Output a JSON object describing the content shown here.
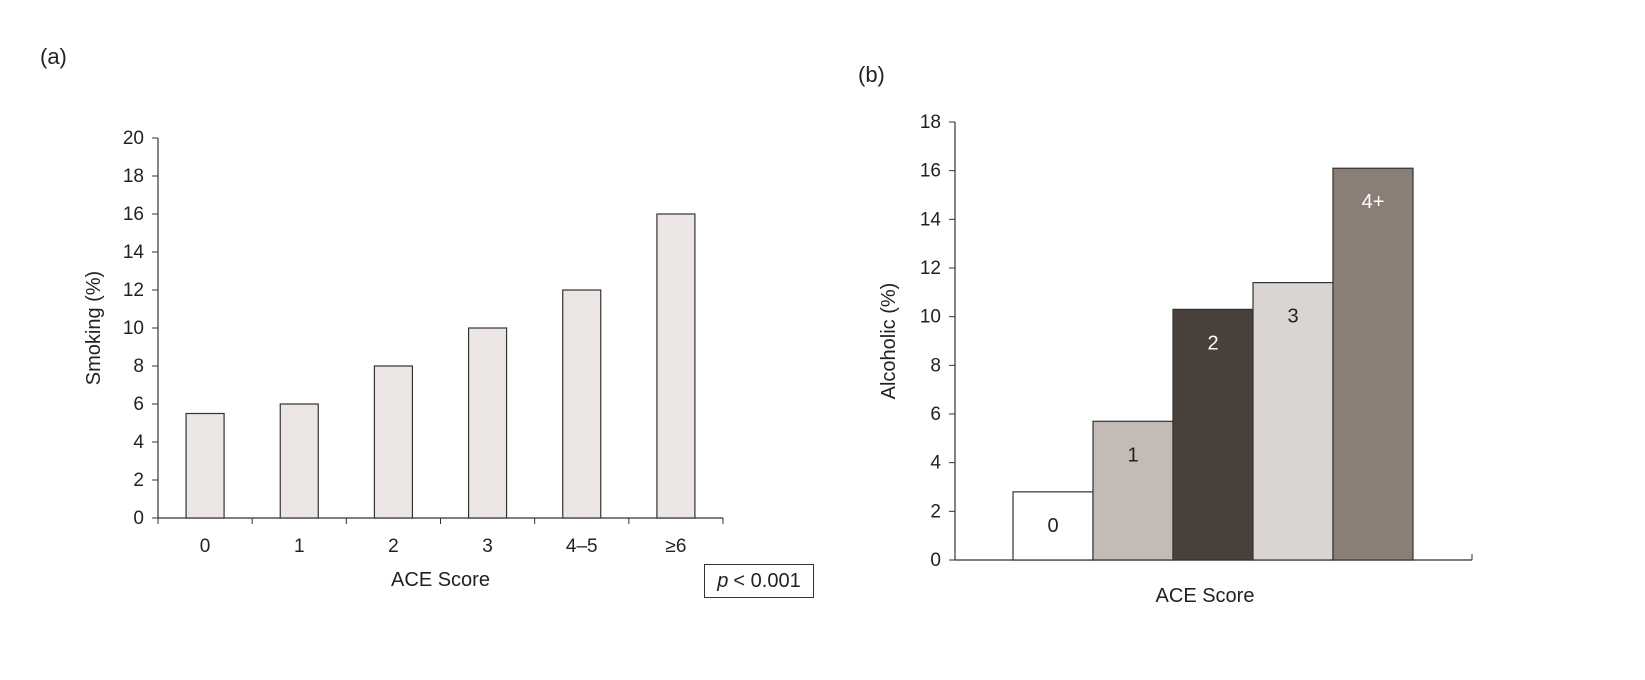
{
  "panels": {
    "a_label": "(a)",
    "b_label": "(b)"
  },
  "p_value": {
    "symbol": "p",
    "text": "< 0.001"
  },
  "chart_data": [
    {
      "type": "bar",
      "panel": "(a)",
      "categories": [
        "0",
        "1",
        "2",
        "3",
        "4–5",
        "≥6"
      ],
      "values": [
        5.5,
        6,
        8,
        10,
        12,
        16
      ],
      "ylabel": "Smoking (%)",
      "xlabel": "ACE Score",
      "ylim": [
        0,
        20
      ],
      "yticks": [
        0,
        2,
        4,
        6,
        8,
        10,
        12,
        14,
        16,
        18,
        20
      ],
      "grid": false,
      "bar_color": "#ece7e5"
    },
    {
      "type": "bar",
      "panel": "(b)",
      "categories": [
        "0",
        "1",
        "2",
        "3",
        "4+"
      ],
      "values": [
        2.8,
        5.7,
        10.3,
        11.4,
        16.1
      ],
      "bar_labels": [
        "0",
        "1",
        "2",
        "3",
        "4+"
      ],
      "ylabel": "Alcoholic (%)",
      "xlabel": "ACE Score",
      "ylim": [
        0,
        18
      ],
      "yticks": [
        0,
        2,
        4,
        6,
        8,
        10,
        12,
        14,
        16,
        18
      ],
      "grid": false,
      "bar_colors": [
        "#ffffff",
        "#c4bbb6",
        "#4a403b",
        "#dad5d2",
        "#8a7e77"
      ],
      "label_colors": [
        "#222222",
        "#222222",
        "#ffffff",
        "#222222",
        "#ffffff"
      ]
    }
  ]
}
